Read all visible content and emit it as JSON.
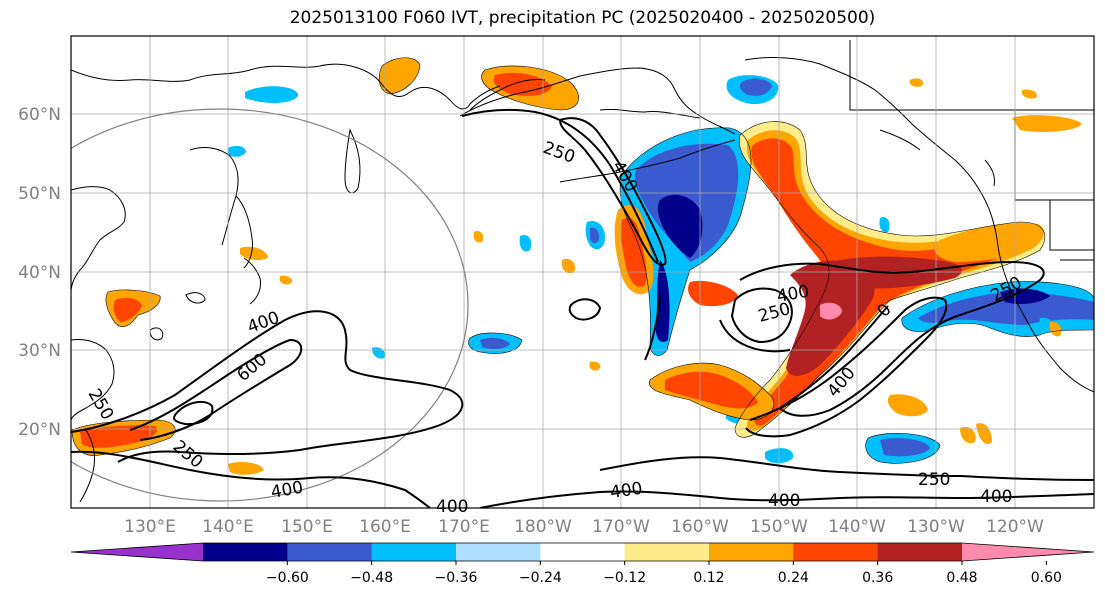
{
  "title": "2025013100 F060 IVT, precipitation PC (2025020400 - 2025020500)",
  "latitude_labels": [
    "60°N",
    "50°N",
    "40°N",
    "30°N",
    "20°N"
  ],
  "longitude_labels": [
    "130°E",
    "140°E",
    "150°E",
    "160°E",
    "170°E",
    "180°W",
    "170°W",
    "160°W",
    "150°W",
    "140°W",
    "130°W",
    "120°W"
  ],
  "colorbar": {
    "colors": [
      "#9932cc",
      "#00008b",
      "#3a5bd0",
      "#00bfff",
      "#b0e0ff",
      "#ffffff",
      "#ffec8b",
      "#ffa500",
      "#ff4500",
      "#b22222",
      "#ff8ab0"
    ],
    "tick_labels": [
      "−0.60",
      "−0.48",
      "−0.36",
      "−0.24",
      "−0.12",
      "0.12",
      "0.24",
      "0.36",
      "0.48",
      "0.60"
    ]
  },
  "contour_labels": [
    {
      "text": "250",
      "id": "c1"
    },
    {
      "text": "400",
      "id": "c2"
    },
    {
      "text": "400",
      "id": "c3"
    },
    {
      "text": "600",
      "id": "c4"
    },
    {
      "text": "250",
      "id": "c5"
    },
    {
      "text": "250",
      "id": "c6"
    },
    {
      "text": "400",
      "id": "c7"
    },
    {
      "text": "400",
      "id": "c8"
    },
    {
      "text": "400",
      "id": "c9"
    },
    {
      "text": "400",
      "id": "c10"
    },
    {
      "text": "250",
      "id": "c11"
    },
    {
      "text": "400",
      "id": "c12"
    },
    {
      "text": "250",
      "id": "c13"
    },
    {
      "text": "400",
      "id": "c14"
    },
    {
      "text": "250",
      "id": "c15"
    },
    {
      "text": "400",
      "id": "c16"
    },
    {
      "text": "0",
      "id": "c17"
    }
  ]
}
